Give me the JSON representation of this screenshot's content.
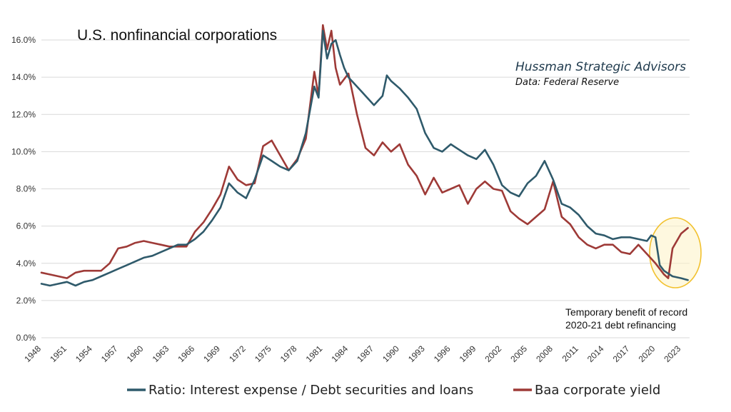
{
  "chart_data": {
    "type": "line",
    "title": "U.S. nonfinancial corporations",
    "source_org": "Hussman Strategic Advisors",
    "source_data": "Data: Federal Reserve",
    "xlabel": "",
    "ylabel": "",
    "xlim": [
      1948,
      2024
    ],
    "ylim": [
      0,
      17
    ],
    "y_ticks": [
      "0.0%",
      "2.0%",
      "4.0%",
      "6.0%",
      "8.0%",
      "10.0%",
      "12.0%",
      "14.0%",
      "16.0%"
    ],
    "y_tick_values": [
      0,
      2,
      4,
      6,
      8,
      10,
      12,
      14,
      16
    ],
    "x_ticks": [
      "1948",
      "1951",
      "1954",
      "1957",
      "1960",
      "1963",
      "1966",
      "1969",
      "1972",
      "1975",
      "1978",
      "1981",
      "1984",
      "1987",
      "1990",
      "1993",
      "1996",
      "1999",
      "2002",
      "2005",
      "2008",
      "2011",
      "2014",
      "2017",
      "2020",
      "2023"
    ],
    "x_tick_values": [
      1948,
      1951,
      1954,
      1957,
      1960,
      1963,
      1966,
      1969,
      1972,
      1975,
      1978,
      1981,
      1984,
      1987,
      1990,
      1993,
      1996,
      1999,
      2002,
      2005,
      2008,
      2011,
      2014,
      2017,
      2020,
      2023
    ],
    "grid": true,
    "legend_position": "bottom",
    "series": [
      {
        "name": "Ratio: Interest expense / Debt securities and loans",
        "color": "#2f5a6b",
        "x": [
          1948,
          1949,
          1950,
          1951,
          1952,
          1953,
          1954,
          1955,
          1956,
          1957,
          1958,
          1959,
          1960,
          1961,
          1962,
          1963,
          1964,
          1965,
          1966,
          1967,
          1968,
          1969,
          1970,
          1971,
          1972,
          1973,
          1974,
          1975,
          1976,
          1977,
          1978,
          1979,
          1980,
          1980.5,
          1981,
          1981.5,
          1982,
          1982.5,
          1983,
          1983.5,
          1984,
          1985,
          1986,
          1987,
          1988,
          1988.5,
          1989,
          1990,
          1991,
          1992,
          1993,
          1994,
          1995,
          1996,
          1997,
          1998,
          1999,
          2000,
          2001,
          2002,
          2003,
          2004,
          2005,
          2006,
          2007,
          2008,
          2009,
          2010,
          2011,
          2012,
          2013,
          2014,
          2015,
          2016,
          2017,
          2018,
          2019,
          2019.5,
          2020,
          2020.5,
          2021,
          2022,
          2023,
          2023.8
        ],
        "y": [
          2.9,
          2.8,
          2.9,
          3.0,
          2.8,
          3.0,
          3.1,
          3.3,
          3.5,
          3.7,
          3.9,
          4.1,
          4.3,
          4.4,
          4.6,
          4.8,
          5.0,
          5.0,
          5.3,
          5.7,
          6.3,
          7.0,
          8.3,
          7.8,
          7.5,
          8.5,
          9.8,
          9.5,
          9.2,
          9.0,
          9.5,
          11.0,
          13.5,
          12.9,
          16.5,
          15.0,
          15.8,
          16.0,
          15.2,
          14.5,
          14.0,
          13.5,
          13.0,
          12.5,
          13.0,
          14.1,
          13.8,
          13.4,
          12.9,
          12.3,
          11.0,
          10.2,
          10.0,
          10.4,
          10.1,
          9.8,
          9.6,
          10.1,
          9.3,
          8.2,
          7.8,
          7.6,
          8.3,
          8.7,
          9.5,
          8.5,
          7.2,
          7.0,
          6.6,
          6.0,
          5.6,
          5.5,
          5.3,
          5.4,
          5.4,
          5.3,
          5.2,
          5.5,
          5.4,
          3.9,
          3.6,
          3.3,
          3.2,
          3.1
        ]
      },
      {
        "name": "Baa corporate yield",
        "color": "#9e3a37",
        "x": [
          1948,
          1949,
          1950,
          1951,
          1952,
          1953,
          1954,
          1955,
          1956,
          1957,
          1958,
          1959,
          1960,
          1961,
          1962,
          1963,
          1964,
          1965,
          1966,
          1967,
          1968,
          1969,
          1970,
          1971,
          1972,
          1973,
          1974,
          1975,
          1976,
          1977,
          1978,
          1979,
          1980,
          1980.5,
          1981,
          1981.5,
          1982,
          1982.5,
          1983,
          1984,
          1985,
          1986,
          1987,
          1988,
          1989,
          1990,
          1991,
          1992,
          1993,
          1994,
          1995,
          1996,
          1997,
          1998,
          1999,
          2000,
          2001,
          2002,
          2003,
          2004,
          2005,
          2006,
          2007,
          2008,
          2009,
          2010,
          2011,
          2012,
          2013,
          2014,
          2015,
          2016,
          2017,
          2018,
          2019,
          2020,
          2020.5,
          2021,
          2021.5,
          2022,
          2023,
          2023.8
        ],
        "y": [
          3.5,
          3.4,
          3.3,
          3.2,
          3.5,
          3.6,
          3.6,
          3.6,
          4.0,
          4.8,
          4.9,
          5.1,
          5.2,
          5.1,
          5.0,
          4.9,
          4.9,
          4.9,
          5.7,
          6.2,
          6.9,
          7.7,
          9.2,
          8.5,
          8.2,
          8.3,
          10.3,
          10.6,
          9.8,
          9.0,
          9.6,
          10.7,
          14.3,
          13.0,
          16.8,
          15.5,
          16.5,
          14.5,
          13.6,
          14.2,
          12.0,
          10.2,
          9.8,
          10.5,
          10.0,
          10.4,
          9.3,
          8.7,
          7.7,
          8.6,
          7.8,
          8.0,
          8.2,
          7.2,
          8.0,
          8.4,
          8.0,
          7.9,
          6.8,
          6.4,
          6.1,
          6.5,
          6.9,
          8.4,
          6.5,
          6.1,
          5.4,
          5.0,
          4.8,
          5.0,
          5.0,
          4.6,
          4.5,
          5.0,
          4.5,
          4.0,
          3.7,
          3.4,
          3.2,
          4.8,
          5.6,
          5.9
        ]
      }
    ],
    "annotation": [
      "Temporary benefit of record",
      "2020-21 debt refinancing"
    ]
  }
}
